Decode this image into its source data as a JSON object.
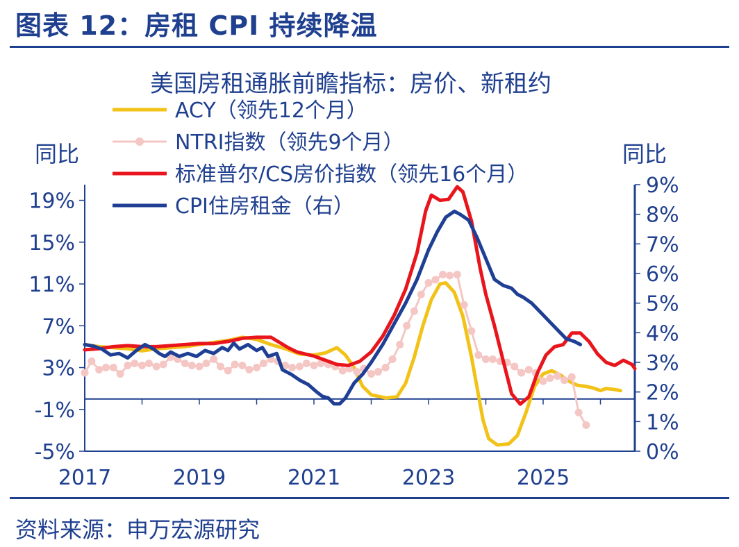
{
  "figure": {
    "title": "图表 12：房租 CPI 持续降温",
    "source": "资料来源：申万宏源研究"
  },
  "chart_data": {
    "type": "line",
    "title": "美国房租通胀前瞻指标：房价、新租约",
    "ylabel_left": "同比",
    "ylabel_right": "同比",
    "x_ticks": [
      "2017",
      "2019",
      "2021",
      "2023",
      "2025"
    ],
    "x_range": [
      2017.0,
      2026.6
    ],
    "y_left_ticks": [
      "19%",
      "15%",
      "11%",
      "7%",
      "3%",
      "-1%",
      "-5%"
    ],
    "y_left_range": [
      -5,
      20.5
    ],
    "y_right_ticks": [
      "9%",
      "8%",
      "7%",
      "6%",
      "5%",
      "4%",
      "3%",
      "2%",
      "1%",
      "0%"
    ],
    "y_right_range": [
      0,
      9
    ],
    "grid": false,
    "legend_position": "top-left",
    "colors": {
      "axis": "#1f3f8f"
    },
    "series": [
      {
        "name": "ACY（领先12个月）",
        "color": "#f2c218",
        "axis": "left",
        "markers": false,
        "points": [
          [
            2017.0,
            5.2
          ],
          [
            2017.25,
            5.0
          ],
          [
            2017.5,
            4.9
          ],
          [
            2017.75,
            4.8
          ],
          [
            2018.0,
            4.6
          ],
          [
            2018.25,
            4.8
          ],
          [
            2018.5,
            4.9
          ],
          [
            2018.75,
            5.0
          ],
          [
            2019.0,
            5.2
          ],
          [
            2019.25,
            5.4
          ],
          [
            2019.5,
            5.6
          ],
          [
            2019.75,
            5.9
          ],
          [
            2020.0,
            5.7
          ],
          [
            2020.25,
            5.2
          ],
          [
            2020.5,
            4.8
          ],
          [
            2020.75,
            4.3
          ],
          [
            2021.0,
            4.2
          ],
          [
            2021.2,
            4.4
          ],
          [
            2021.4,
            4.9
          ],
          [
            2021.55,
            4.2
          ],
          [
            2021.7,
            3.0
          ],
          [
            2021.85,
            1.2
          ],
          [
            2022.0,
            0.4
          ],
          [
            2022.25,
            0.1
          ],
          [
            2022.45,
            0.2
          ],
          [
            2022.6,
            1.5
          ],
          [
            2022.75,
            4.0
          ],
          [
            2022.9,
            7.0
          ],
          [
            2023.05,
            9.5
          ],
          [
            2023.2,
            11.0
          ],
          [
            2023.3,
            11.1
          ],
          [
            2023.45,
            10.2
          ],
          [
            2023.6,
            7.9
          ],
          [
            2023.75,
            4.0
          ],
          [
            2023.85,
            1.0
          ],
          [
            2023.95,
            -2.0
          ],
          [
            2024.05,
            -3.8
          ],
          [
            2024.2,
            -4.4
          ],
          [
            2024.4,
            -4.3
          ],
          [
            2024.55,
            -3.5
          ],
          [
            2024.7,
            -1.3
          ],
          [
            2024.85,
            1.2
          ],
          [
            2025.0,
            2.4
          ],
          [
            2025.15,
            2.7
          ],
          [
            2025.3,
            2.3
          ],
          [
            2025.45,
            1.7
          ],
          [
            2025.6,
            1.3
          ],
          [
            2025.75,
            1.2
          ],
          [
            2025.9,
            1.0
          ],
          [
            2026.0,
            0.8
          ],
          [
            2026.1,
            1.0
          ],
          [
            2026.25,
            0.9
          ],
          [
            2026.35,
            0.8
          ]
        ]
      },
      {
        "name": "NTRI指数（领先9个月）",
        "color": "#f4c6c4",
        "axis": "left",
        "markers": true,
        "points": [
          [
            2017.0,
            2.5
          ],
          [
            2017.12,
            3.6
          ],
          [
            2017.25,
            2.8
          ],
          [
            2017.37,
            3.0
          ],
          [
            2017.5,
            3.0
          ],
          [
            2017.62,
            2.4
          ],
          [
            2017.75,
            3.2
          ],
          [
            2017.87,
            3.4
          ],
          [
            2018.0,
            3.2
          ],
          [
            2018.12,
            3.4
          ],
          [
            2018.25,
            3.1
          ],
          [
            2018.37,
            3.3
          ],
          [
            2018.5,
            4.0
          ],
          [
            2018.62,
            3.8
          ],
          [
            2018.75,
            3.4
          ],
          [
            2018.87,
            3.2
          ],
          [
            2019.0,
            3.1
          ],
          [
            2019.12,
            3.4
          ],
          [
            2019.25,
            3.8
          ],
          [
            2019.37,
            3.1
          ],
          [
            2019.5,
            2.7
          ],
          [
            2019.62,
            3.3
          ],
          [
            2019.75,
            3.2
          ],
          [
            2019.87,
            2.8
          ],
          [
            2020.0,
            3.0
          ],
          [
            2020.12,
            3.4
          ],
          [
            2020.25,
            3.8
          ],
          [
            2020.37,
            3.6
          ],
          [
            2020.5,
            3.2
          ],
          [
            2020.62,
            3.0
          ],
          [
            2020.75,
            3.1
          ],
          [
            2020.87,
            3.4
          ],
          [
            2021.0,
            3.2
          ],
          [
            2021.12,
            3.4
          ],
          [
            2021.25,
            3.3
          ],
          [
            2021.37,
            3.1
          ],
          [
            2021.5,
            2.7
          ],
          [
            2021.62,
            2.9
          ],
          [
            2021.75,
            2.6
          ],
          [
            2021.87,
            2.9
          ],
          [
            2022.0,
            2.4
          ],
          [
            2022.12,
            2.6
          ],
          [
            2022.25,
            3.0
          ],
          [
            2022.37,
            3.8
          ],
          [
            2022.5,
            5.2
          ],
          [
            2022.62,
            7.0
          ],
          [
            2022.75,
            8.4
          ],
          [
            2022.87,
            10.0
          ],
          [
            2023.0,
            11.1
          ],
          [
            2023.12,
            11.4
          ],
          [
            2023.25,
            11.9
          ],
          [
            2023.37,
            11.8
          ],
          [
            2023.5,
            11.9
          ],
          [
            2023.62,
            9.0
          ],
          [
            2023.75,
            6.5
          ],
          [
            2023.87,
            4.2
          ],
          [
            2024.0,
            3.8
          ],
          [
            2024.12,
            3.8
          ],
          [
            2024.25,
            3.6
          ],
          [
            2024.37,
            3.5
          ],
          [
            2024.5,
            3.1
          ],
          [
            2024.62,
            2.5
          ],
          [
            2024.75,
            2.8
          ],
          [
            2024.87,
            2.5
          ],
          [
            2025.0,
            1.7
          ],
          [
            2025.12,
            2.0
          ],
          [
            2025.25,
            2.2
          ],
          [
            2025.37,
            1.8
          ],
          [
            2025.5,
            2.1
          ],
          [
            2025.62,
            -1.3
          ],
          [
            2025.75,
            -2.5
          ]
        ]
      },
      {
        "name": "标准普尔/CS房价指数（领先16个月）",
        "color": "#e8161c",
        "axis": "left",
        "markers": false,
        "points": [
          [
            2017.0,
            4.7
          ],
          [
            2017.25,
            4.8
          ],
          [
            2017.5,
            5.0
          ],
          [
            2017.75,
            5.1
          ],
          [
            2018.0,
            5.0
          ],
          [
            2018.25,
            5.0
          ],
          [
            2018.5,
            5.1
          ],
          [
            2018.75,
            5.2
          ],
          [
            2019.0,
            5.3
          ],
          [
            2019.25,
            5.3
          ],
          [
            2019.5,
            5.5
          ],
          [
            2019.75,
            5.8
          ],
          [
            2020.0,
            5.9
          ],
          [
            2020.25,
            5.9
          ],
          [
            2020.4,
            5.4
          ],
          [
            2020.55,
            4.9
          ],
          [
            2020.7,
            4.5
          ],
          [
            2020.85,
            4.3
          ],
          [
            2021.0,
            4.1
          ],
          [
            2021.2,
            3.7
          ],
          [
            2021.4,
            3.3
          ],
          [
            2021.6,
            3.2
          ],
          [
            2021.8,
            3.6
          ],
          [
            2022.0,
            4.5
          ],
          [
            2022.2,
            6.0
          ],
          [
            2022.4,
            8.0
          ],
          [
            2022.6,
            10.5
          ],
          [
            2022.8,
            14.0
          ],
          [
            2022.95,
            18.0
          ],
          [
            2023.05,
            19.5
          ],
          [
            2023.2,
            19.0
          ],
          [
            2023.35,
            19.1
          ],
          [
            2023.5,
            20.3
          ],
          [
            2023.6,
            19.8
          ],
          [
            2023.75,
            17.0
          ],
          [
            2023.9,
            12.5
          ],
          [
            2024.0,
            10.0
          ],
          [
            2024.15,
            7.0
          ],
          [
            2024.3,
            3.7
          ],
          [
            2024.45,
            0.5
          ],
          [
            2024.6,
            -0.5
          ],
          [
            2024.75,
            0.2
          ],
          [
            2024.9,
            2.5
          ],
          [
            2025.05,
            4.2
          ],
          [
            2025.2,
            5.0
          ],
          [
            2025.35,
            5.2
          ],
          [
            2025.5,
            6.3
          ],
          [
            2025.65,
            6.3
          ],
          [
            2025.8,
            5.5
          ],
          [
            2025.95,
            4.3
          ],
          [
            2026.1,
            3.5
          ],
          [
            2026.25,
            3.2
          ],
          [
            2026.4,
            3.7
          ],
          [
            2026.55,
            3.3
          ],
          [
            2026.6,
            2.9
          ]
        ]
      },
      {
        "name": "CPI住房租金（右）",
        "color": "#1f3f95",
        "axis": "right",
        "markers": false,
        "points": [
          [
            2017.0,
            3.6
          ],
          [
            2017.15,
            3.55
          ],
          [
            2017.3,
            3.45
          ],
          [
            2017.45,
            3.25
          ],
          [
            2017.6,
            3.3
          ],
          [
            2017.75,
            3.15
          ],
          [
            2017.9,
            3.4
          ],
          [
            2018.05,
            3.6
          ],
          [
            2018.2,
            3.45
          ],
          [
            2018.3,
            3.3
          ],
          [
            2018.4,
            3.2
          ],
          [
            2018.5,
            3.35
          ],
          [
            2018.65,
            3.2
          ],
          [
            2018.8,
            3.3
          ],
          [
            2018.95,
            3.2
          ],
          [
            2019.1,
            3.4
          ],
          [
            2019.25,
            3.3
          ],
          [
            2019.4,
            3.5
          ],
          [
            2019.5,
            3.4
          ],
          [
            2019.6,
            3.65
          ],
          [
            2019.7,
            3.45
          ],
          [
            2019.85,
            3.6
          ],
          [
            2020.0,
            3.4
          ],
          [
            2020.1,
            3.5
          ],
          [
            2020.2,
            3.2
          ],
          [
            2020.35,
            3.3
          ],
          [
            2020.45,
            2.75
          ],
          [
            2020.6,
            2.6
          ],
          [
            2020.75,
            2.4
          ],
          [
            2020.9,
            2.25
          ],
          [
            2021.05,
            2.0
          ],
          [
            2021.15,
            1.85
          ],
          [
            2021.25,
            1.8
          ],
          [
            2021.35,
            1.6
          ],
          [
            2021.45,
            1.6
          ],
          [
            2021.55,
            1.8
          ],
          [
            2021.7,
            2.3
          ],
          [
            2021.85,
            2.6
          ],
          [
            2022.0,
            3.0
          ],
          [
            2022.2,
            3.6
          ],
          [
            2022.4,
            4.3
          ],
          [
            2022.6,
            5.0
          ],
          [
            2022.8,
            5.8
          ],
          [
            2023.0,
            6.8
          ],
          [
            2023.15,
            7.4
          ],
          [
            2023.3,
            7.9
          ],
          [
            2023.45,
            8.1
          ],
          [
            2023.55,
            8.0
          ],
          [
            2023.7,
            7.8
          ],
          [
            2023.85,
            7.2
          ],
          [
            2024.0,
            6.5
          ],
          [
            2024.15,
            5.8
          ],
          [
            2024.3,
            5.6
          ],
          [
            2024.45,
            5.5
          ],
          [
            2024.55,
            5.3
          ],
          [
            2024.65,
            5.2
          ],
          [
            2024.8,
            5.0
          ],
          [
            2024.95,
            4.7
          ],
          [
            2025.1,
            4.4
          ],
          [
            2025.25,
            4.1
          ],
          [
            2025.4,
            3.8
          ],
          [
            2025.55,
            3.7
          ],
          [
            2025.65,
            3.6
          ]
        ]
      }
    ]
  }
}
